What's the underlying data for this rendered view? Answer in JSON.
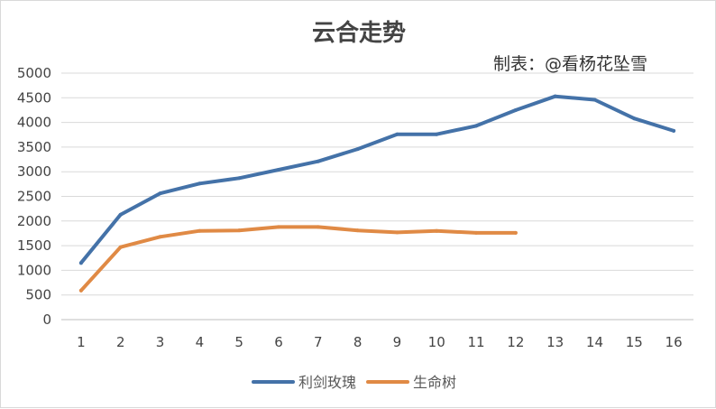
{
  "chart_data": {
    "type": "line",
    "title": "云合走势",
    "annotation": "制表：@看杨花坠雪",
    "xlabel": "",
    "ylabel": "",
    "x": [
      1,
      2,
      3,
      4,
      5,
      6,
      7,
      8,
      9,
      10,
      11,
      12,
      13,
      14,
      15,
      16
    ],
    "ylim": [
      0,
      5000
    ],
    "yticks": [
      0,
      500,
      1000,
      1500,
      2000,
      2500,
      3000,
      3500,
      4000,
      4500,
      5000
    ],
    "grid": true,
    "legend_position": "bottom",
    "series": [
      {
        "name": "利剑玫瑰",
        "color": "#4472a8",
        "values": [
          1150,
          2130,
          2560,
          2760,
          2870,
          3040,
          3210,
          3460,
          3760,
          3760,
          3930,
          4250,
          4530,
          4460,
          4080,
          3830
        ]
      },
      {
        "name": "生命树",
        "color": "#e08a45",
        "values": [
          590,
          1470,
          1680,
          1800,
          1810,
          1880,
          1880,
          1810,
          1770,
          1800,
          1760,
          1760,
          null,
          null,
          null,
          null
        ]
      }
    ]
  }
}
